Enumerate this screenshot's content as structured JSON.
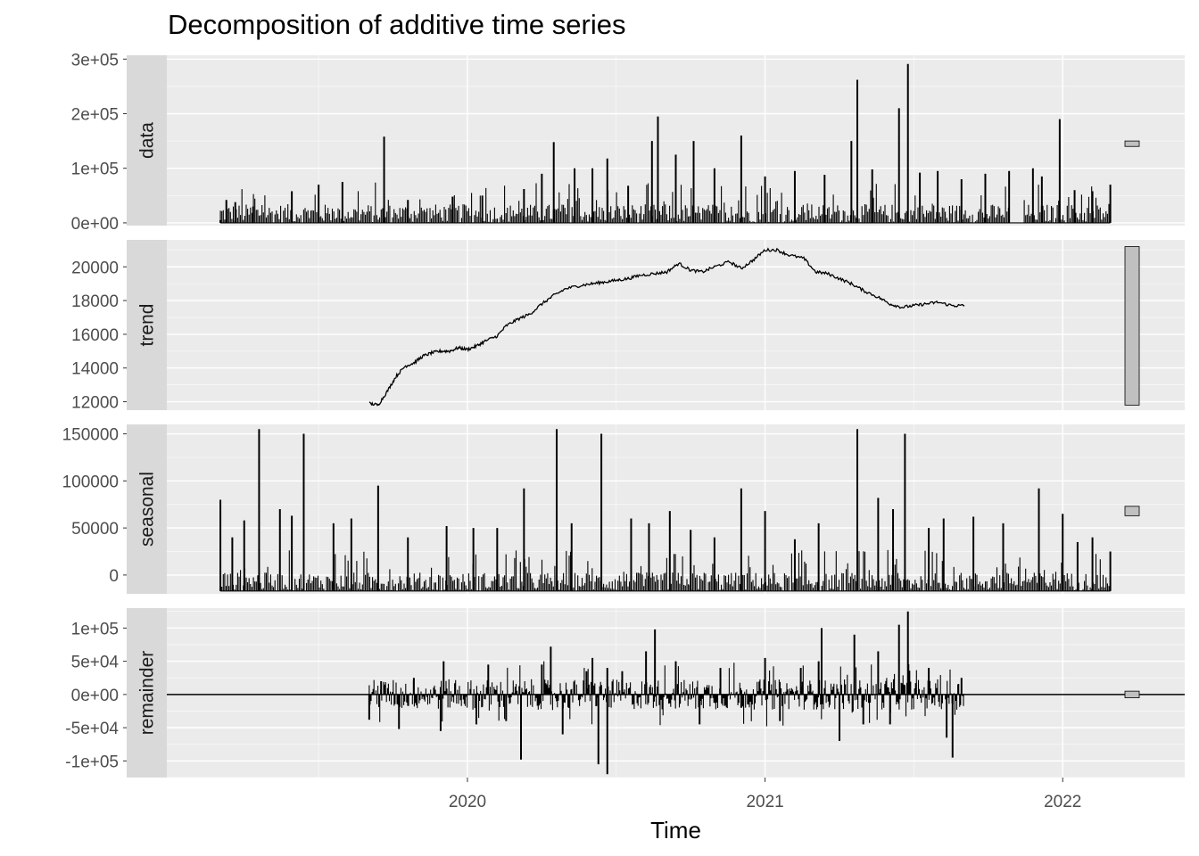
{
  "chart_data": {
    "type": "line",
    "title": "Decomposition of additive time series",
    "xlabel": "Time",
    "ylabel": "",
    "xlim": [
      2018.99,
      2022.41
    ],
    "x_ticks": [
      2020,
      2021,
      2022
    ],
    "x_tick_labels": [
      "2020",
      "2021",
      "2022"
    ],
    "grid": true,
    "legend": "none",
    "background": "#EBEBEB",
    "strip_color": "#D9D9D9",
    "line_color": "#000000",
    "scale_bar_color": "#C0C0C0",
    "panels": [
      {
        "name": "data",
        "ylim": [
          -5000,
          307000
        ],
        "y_ticks": [
          0,
          100000,
          200000,
          300000
        ],
        "y_tick_labels": [
          "0e+00",
          "1e+05",
          "2e+05",
          "3e+05"
        ],
        "style": "spikes",
        "baseline": 0,
        "x_range": [
          2019.17,
          2022.16
        ],
        "gap": [
          2021.82,
          2021.87
        ],
        "peaks": [
          [
            2019.17,
            5000
          ],
          [
            2019.19,
            42000
          ],
          [
            2019.22,
            38000
          ],
          [
            2019.28,
            30000
          ],
          [
            2019.41,
            58000
          ],
          [
            2019.5,
            70000
          ],
          [
            2019.58,
            75000
          ],
          [
            2019.72,
            158000
          ],
          [
            2019.8,
            42000
          ],
          [
            2019.95,
            48000
          ],
          [
            2020.05,
            50000
          ],
          [
            2020.19,
            62000
          ],
          [
            2020.25,
            90000
          ],
          [
            2020.29,
            148000
          ],
          [
            2020.36,
            100000
          ],
          [
            2020.42,
            100000
          ],
          [
            2020.47,
            118000
          ],
          [
            2020.54,
            68000
          ],
          [
            2020.62,
            150000
          ],
          [
            2020.64,
            195000
          ],
          [
            2020.7,
            125000
          ],
          [
            2020.76,
            150000
          ],
          [
            2020.83,
            100000
          ],
          [
            2020.92,
            160000
          ],
          [
            2021.0,
            85000
          ],
          [
            2021.1,
            95000
          ],
          [
            2021.2,
            88000
          ],
          [
            2021.29,
            150000
          ],
          [
            2021.31,
            262000
          ],
          [
            2021.36,
            98000
          ],
          [
            2021.45,
            210000
          ],
          [
            2021.48,
            291000
          ],
          [
            2021.52,
            92000
          ],
          [
            2021.58,
            95000
          ],
          [
            2021.66,
            80000
          ],
          [
            2021.74,
            90000
          ],
          [
            2021.82,
            95000
          ],
          [
            2021.9,
            100000
          ],
          [
            2021.93,
            85000
          ],
          [
            2021.99,
            190000
          ],
          [
            2022.04,
            60000
          ],
          [
            2022.1,
            58000
          ],
          [
            2022.16,
            70000
          ]
        ],
        "scale_bar": [
          140000,
          150000
        ]
      },
      {
        "name": "trend",
        "ylim": [
          11500,
          21600
        ],
        "y_ticks": [
          12000,
          14000,
          16000,
          18000,
          20000
        ],
        "y_tick_labels": [
          "12000",
          "14000",
          "16000",
          "18000",
          "20000"
        ],
        "style": "line",
        "x": [
          2019.67,
          2019.7,
          2019.73,
          2019.76,
          2019.79,
          2019.82,
          2019.85,
          2019.88,
          2019.91,
          2019.94,
          2019.97,
          2020.0,
          2020.03,
          2020.06,
          2020.1,
          2020.13,
          2020.17,
          2020.21,
          2020.25,
          2020.29,
          2020.33,
          2020.38,
          2020.42,
          2020.46,
          2020.5,
          2020.54,
          2020.58,
          2020.63,
          2020.67,
          2020.71,
          2020.75,
          2020.79,
          2020.83,
          2020.88,
          2020.92,
          2020.96,
          2021.0,
          2021.04,
          2021.08,
          2021.13,
          2021.17,
          2021.21,
          2021.25,
          2021.29,
          2021.33,
          2021.38,
          2021.42,
          2021.46,
          2021.5,
          2021.54,
          2021.58,
          2021.63,
          2021.67
        ],
        "y": [
          11900,
          11800,
          12600,
          13500,
          14100,
          14300,
          14700,
          14900,
          15000,
          15000,
          15200,
          15100,
          15300,
          15600,
          15900,
          16500,
          16900,
          17200,
          17800,
          18300,
          18700,
          18900,
          19000,
          19100,
          19200,
          19300,
          19500,
          19600,
          19700,
          20200,
          19800,
          19700,
          20000,
          20300,
          19900,
          20400,
          21000,
          21000,
          20700,
          20500,
          19700,
          19600,
          19300,
          19000,
          18600,
          18200,
          17800,
          17600,
          17700,
          17800,
          17900,
          17700,
          17700
        ],
        "scale_bar": [
          11800,
          21200
        ]
      },
      {
        "name": "seasonal",
        "ylim": [
          -20000,
          160000
        ],
        "y_ticks": [
          0,
          50000,
          100000,
          150000
        ],
        "y_tick_labels": [
          "0",
          "50000",
          "100000",
          "150000"
        ],
        "style": "spikes",
        "baseline": -17000,
        "x_range": [
          2019.17,
          2022.16
        ],
        "peaks": [
          [
            2019.17,
            80000
          ],
          [
            2019.21,
            40000
          ],
          [
            2019.25,
            58000
          ],
          [
            2019.3,
            155000
          ],
          [
            2019.37,
            70000
          ],
          [
            2019.41,
            63000
          ],
          [
            2019.45,
            150000
          ],
          [
            2019.55,
            55000
          ],
          [
            2019.61,
            60000
          ],
          [
            2019.7,
            95000
          ],
          [
            2019.8,
            40000
          ],
          [
            2019.93,
            52000
          ],
          [
            2020.02,
            50000
          ],
          [
            2020.1,
            50000
          ],
          [
            2020.19,
            92000
          ],
          [
            2020.3,
            155000
          ],
          [
            2020.35,
            55000
          ],
          [
            2020.45,
            150000
          ],
          [
            2020.55,
            60000
          ],
          [
            2020.61,
            55000
          ],
          [
            2020.68,
            68000
          ],
          [
            2020.75,
            48000
          ],
          [
            2020.83,
            40000
          ],
          [
            2020.92,
            92000
          ],
          [
            2021.0,
            68000
          ],
          [
            2021.1,
            38000
          ],
          [
            2021.18,
            55000
          ],
          [
            2021.31,
            155000
          ],
          [
            2021.38,
            82000
          ],
          [
            2021.43,
            70000
          ],
          [
            2021.47,
            150000
          ],
          [
            2021.55,
            50000
          ],
          [
            2021.6,
            60000
          ],
          [
            2021.7,
            62000
          ],
          [
            2021.8,
            55000
          ],
          [
            2021.92,
            92000
          ],
          [
            2022.0,
            65000
          ],
          [
            2022.05,
            35000
          ],
          [
            2022.1,
            40000
          ],
          [
            2022.16,
            25000
          ]
        ],
        "scale_bar": [
          63000,
          73000
        ]
      },
      {
        "name": "remainder",
        "ylim": [
          -125000,
          130000
        ],
        "y_ticks": [
          -100000,
          -50000,
          0,
          50000,
          100000
        ],
        "y_tick_labels": [
          "-1e+05",
          "-5e+04",
          "0e+00",
          "5e+04",
          "1e+05"
        ],
        "style": "bipolar-spikes",
        "baseline": 0,
        "x_range": [
          2019.67,
          2021.67
        ],
        "zero_line": true,
        "peaks": [
          [
            2019.67,
            -38000
          ],
          [
            2019.71,
            20000
          ],
          [
            2019.77,
            -52000
          ],
          [
            2019.82,
            25000
          ],
          [
            2019.91,
            -55000
          ],
          [
            2019.92,
            50000
          ],
          [
            2020.03,
            -45000
          ],
          [
            2020.07,
            45000
          ],
          [
            2020.13,
            -40000
          ],
          [
            2020.18,
            -98000
          ],
          [
            2020.25,
            45000
          ],
          [
            2020.28,
            72000
          ],
          [
            2020.32,
            -60000
          ],
          [
            2020.4,
            35000
          ],
          [
            2020.42,
            55000
          ],
          [
            2020.44,
            -105000
          ],
          [
            2020.47,
            40000
          ],
          [
            2020.47,
            -120000
          ],
          [
            2020.52,
            35000
          ],
          [
            2020.6,
            65000
          ],
          [
            2020.63,
            98000
          ],
          [
            2020.7,
            50000
          ],
          [
            2020.78,
            -45000
          ],
          [
            2020.85,
            40000
          ],
          [
            2020.92,
            -20000
          ],
          [
            2021.0,
            55000
          ],
          [
            2021.05,
            -40000
          ],
          [
            2021.12,
            40000
          ],
          [
            2021.18,
            50000
          ],
          [
            2021.19,
            100000
          ],
          [
            2021.25,
            -70000
          ],
          [
            2021.3,
            90000
          ],
          [
            2021.33,
            -45000
          ],
          [
            2021.38,
            65000
          ],
          [
            2021.42,
            -45000
          ],
          [
            2021.45,
            105000
          ],
          [
            2021.48,
            125000
          ],
          [
            2021.55,
            40000
          ],
          [
            2021.61,
            -65000
          ],
          [
            2021.63,
            -95000
          ],
          [
            2021.66,
            25000
          ]
        ],
        "scale_bar": [
          -5000,
          5000
        ]
      }
    ]
  }
}
